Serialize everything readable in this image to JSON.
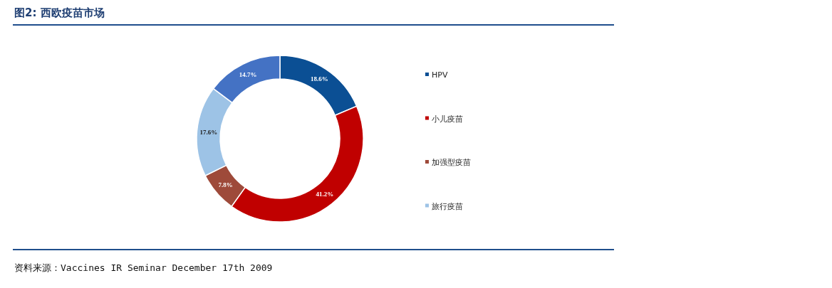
{
  "chart_data": {
    "type": "donut",
    "title": "图2: 西欧疫苗市场",
    "categories": [
      "HPV",
      "小儿疫苗",
      "加强型疫苗",
      "旅行疫苗",
      null
    ],
    "values": [
      18.6,
      41.2,
      7.8,
      17.6,
      14.7
    ],
    "colors": [
      "#0b4f94",
      "#c00000",
      "#9e4a3a",
      "#9dc3e6",
      "#4472c4"
    ],
    "value_labels": [
      "18.6%",
      "41.2%",
      "7.8%",
      "17.6%",
      "14.7%"
    ],
    "legend": "right",
    "annotations": [
      "资料来源：Vaccines IR Seminar December 17th 2009"
    ]
  }
}
